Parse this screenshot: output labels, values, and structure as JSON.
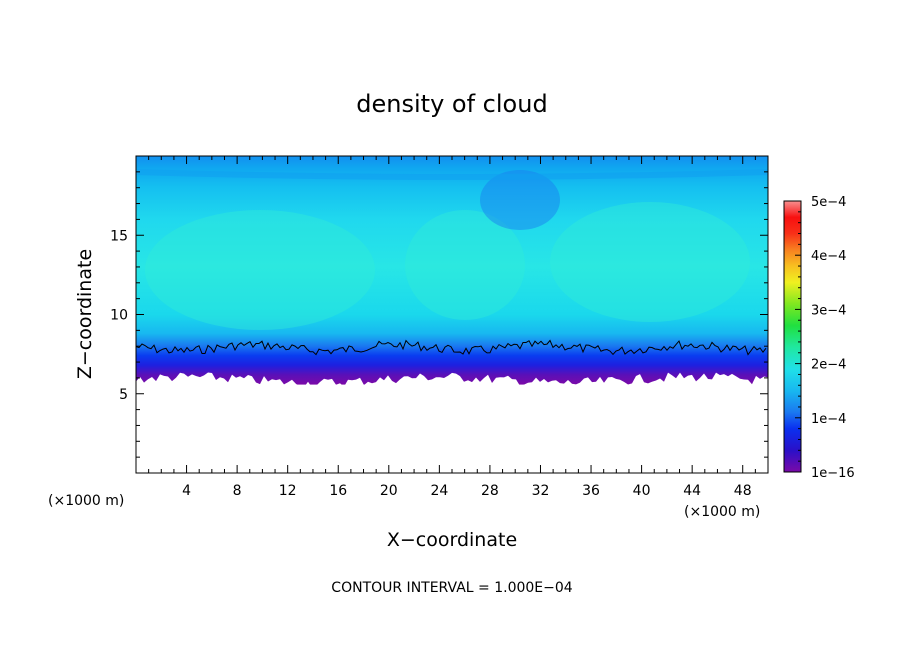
{
  "chart_data": {
    "type": "heatmap",
    "title": "density of cloud",
    "xlabel": "X−coordinate",
    "ylabel": "Z−coordinate",
    "x_unit": "(×1000 m)",
    "z_unit": "(×1000 m)",
    "xlim": [
      0,
      50
    ],
    "ylim": [
      0,
      20
    ],
    "x_ticks": [
      4,
      8,
      12,
      16,
      20,
      24,
      28,
      32,
      36,
      40,
      44,
      48
    ],
    "x_tick_labels": [
      "4",
      "8",
      "12",
      "16",
      "20",
      "24",
      "28",
      "32",
      "36",
      "40",
      "44",
      "48"
    ],
    "y_ticks": [
      5,
      10,
      15
    ],
    "y_tick_labels": [
      "5",
      "10",
      "15"
    ],
    "colorbar": {
      "min": 0,
      "max": 0.0005,
      "ticks": [
        0,
        0.0001,
        0.0002,
        0.0003,
        0.0004,
        0.0005
      ],
      "tick_labels": [
        "1e−16",
        "1e−4",
        "2e−4",
        "3e−4",
        "4e−4",
        "5e−4"
      ]
    },
    "cloud_base_km": 6.0,
    "cloud_top_km": 19.5,
    "contour_level": 0.0001,
    "footer": "CONTOUR INTERVAL = 1.000E−04"
  }
}
